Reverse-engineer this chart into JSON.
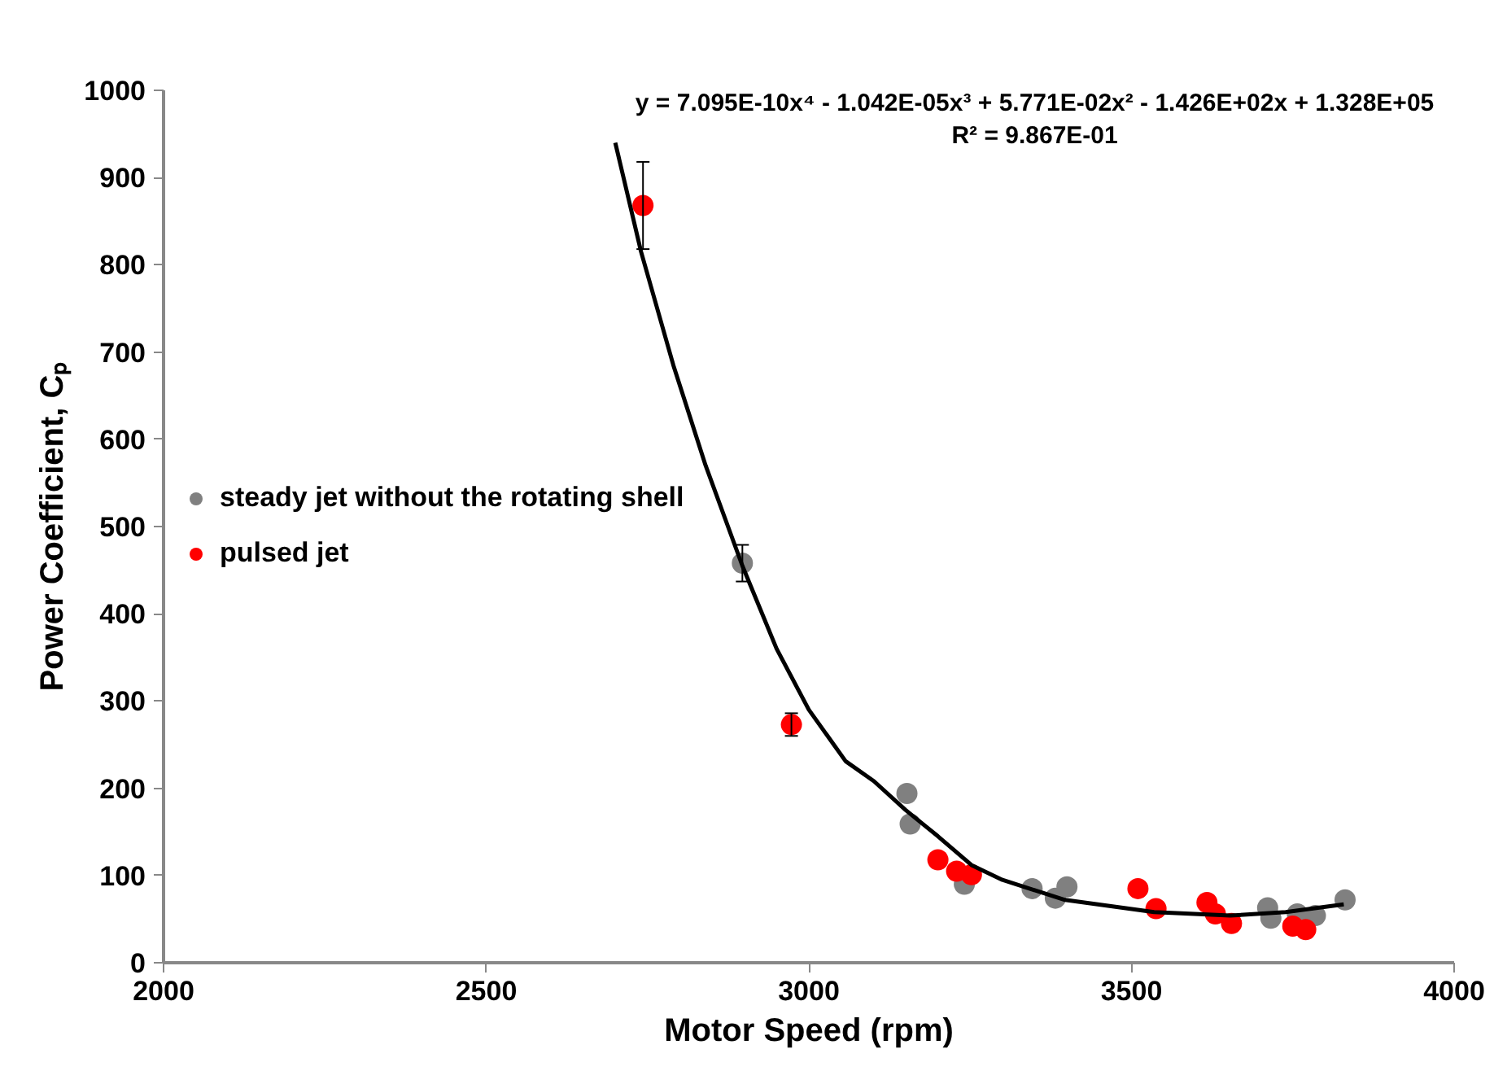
{
  "chart_data": {
    "type": "scatter",
    "xlabel": "Motor Speed (rpm)",
    "ylabel": "Power Coefficient, Cₚ",
    "xlim": [
      2000,
      4000
    ],
    "xticks": [
      2000,
      2500,
      3000,
      3500,
      4000
    ],
    "ylim": [
      0,
      1000
    ],
    "yticks": [
      0,
      100,
      200,
      300,
      400,
      500,
      600,
      700,
      800,
      900,
      1000
    ],
    "grid": false,
    "legend": "left",
    "marker": "circle",
    "series": [
      {
        "name": "steady jet without the rotating shell",
        "color": "#808080",
        "x": [
          2897,
          3152,
          3157,
          3241,
          3346,
          3382,
          3400,
          3711,
          3716,
          3757,
          3785,
          3831
        ],
        "values": [
          458,
          194,
          159,
          90,
          85,
          74,
          87,
          63,
          51,
          56,
          54,
          72
        ],
        "errors": [
          21,
          null,
          null,
          null,
          null,
          null,
          null,
          null,
          null,
          null,
          null,
          null
        ]
      },
      {
        "name": "pulsed jet",
        "color": "#ff0000",
        "x": [
          2743,
          2973,
          3200,
          3229,
          3252,
          3510,
          3538,
          3617,
          3630,
          3655,
          3750,
          3770
        ],
        "values": [
          868,
          273,
          118,
          105,
          101,
          85,
          62,
          69,
          56,
          45,
          42,
          38
        ],
        "errors": [
          50,
          13,
          null,
          null,
          null,
          null,
          null,
          null,
          null,
          null,
          null,
          null
        ]
      },
      {
        "type": "line",
        "marker": "none",
        "color": "#000000",
        "x": [
          2700,
          2740,
          2790,
          2840,
          2897,
          2950,
          3000,
          3057,
          3101,
          3150,
          3200,
          3252,
          3300,
          3397,
          3535,
          3653,
          3739,
          3829
        ],
        "values": [
          940,
          815,
          685,
          570,
          455,
          360,
          290,
          231,
          208,
          175,
          145,
          112,
          95,
          72,
          58,
          54,
          58,
          67
        ]
      }
    ],
    "annotations": [
      "y = 7.095E-10x⁴ - 1.042E-05x³ + 5.771E-02x² - 1.426E+02x + 1.328E+05",
      "R² = 9.867E-01"
    ]
  }
}
